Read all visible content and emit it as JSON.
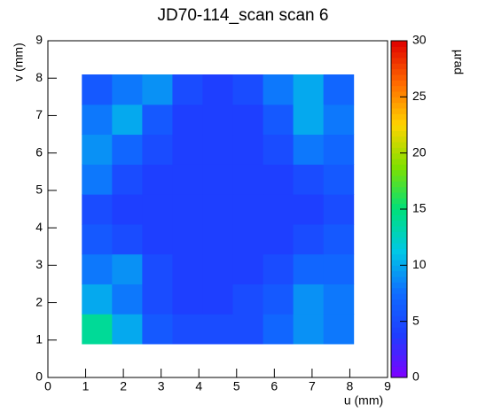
{
  "chart_data": {
    "type": "heatmap",
    "title": "JD70-114_scan scan 6",
    "xlabel": "u (mm)",
    "ylabel": "v (mm)",
    "zlabel": "µrad",
    "xlim": [
      0,
      9
    ],
    "ylim": [
      0,
      9
    ],
    "zlim": [
      0,
      30
    ],
    "xticks": [
      0,
      1,
      2,
      3,
      4,
      5,
      6,
      7,
      8,
      9
    ],
    "yticks": [
      0,
      1,
      2,
      3,
      4,
      5,
      6,
      7,
      8,
      9
    ],
    "zticks": [
      0,
      5,
      10,
      15,
      20,
      25,
      30
    ],
    "x": [
      0.9,
      1.7,
      2.5,
      3.3,
      4.1,
      4.9,
      5.7,
      6.5,
      7.3,
      8.1
    ],
    "y": [
      0.9,
      1.7,
      2.5,
      3.3,
      4.1,
      4.9,
      5.7,
      6.5,
      7.3,
      8.1
    ],
    "z": [
      [
        14,
        10,
        6,
        5,
        5,
        5,
        7,
        9,
        8
      ],
      [
        10,
        8,
        5,
        4,
        4,
        5,
        6,
        9,
        8
      ],
      [
        8,
        9,
        5,
        4,
        4,
        4,
        5,
        7,
        7
      ],
      [
        6,
        5,
        4,
        4,
        4,
        4,
        4,
        5,
        6
      ],
      [
        5,
        4,
        4,
        4,
        4,
        4,
        4,
        4,
        5
      ],
      [
        8,
        5,
        4,
        4,
        4,
        4,
        4,
        5,
        6
      ],
      [
        9,
        7,
        5,
        4,
        4,
        4,
        5,
        8,
        7
      ],
      [
        8,
        10,
        6,
        4,
        4,
        4,
        6,
        10,
        8
      ],
      [
        6,
        8,
        9,
        5,
        4,
        5,
        8,
        10,
        7
      ]
    ],
    "colorscale": [
      "#7f00ff",
      "#1f3cff",
      "#0f6cff",
      "#00c8e6",
      "#00e07a",
      "#7fe000",
      "#ffd400",
      "#ff6a00",
      "#e00000"
    ]
  }
}
